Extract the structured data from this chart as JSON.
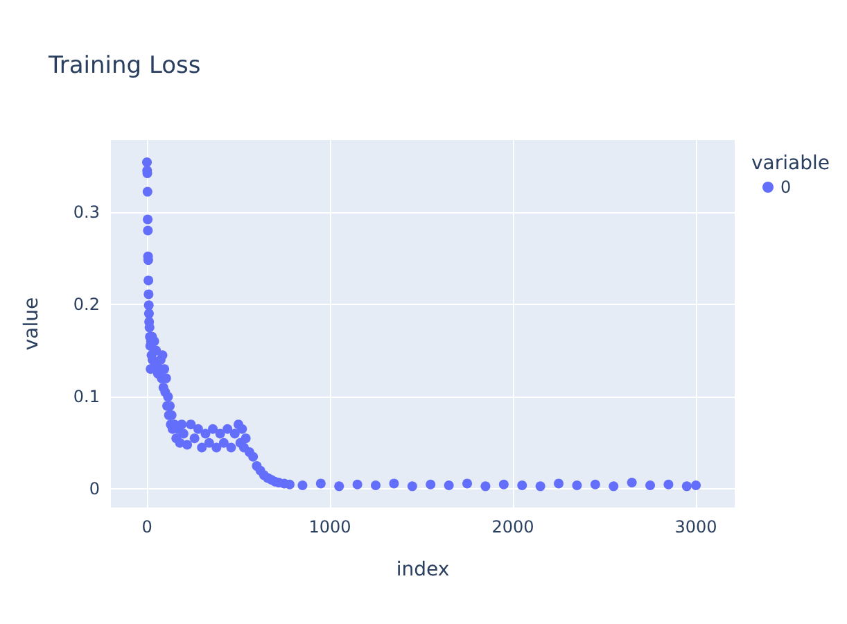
{
  "chart_data": {
    "type": "scatter",
    "title": "Training Loss",
    "xlabel": "index",
    "ylabel": "value",
    "legend_title": "variable",
    "legend": "top right",
    "grid": true,
    "marker": "circle",
    "xlim": [
      -197,
      3212
    ],
    "ylim": [
      -0.02,
      0.378
    ],
    "xticks": [
      0,
      1000,
      2000,
      3000
    ],
    "yticks": [
      0,
      0.1,
      0.2,
      0.3
    ],
    "series": [
      {
        "name": "0",
        "color": "#636efa",
        "x": [
          0,
          1,
          2,
          3,
          4,
          5,
          6,
          7,
          8,
          9,
          10,
          11,
          12,
          14,
          16,
          18,
          20,
          22,
          25,
          28,
          30,
          40,
          45,
          50,
          60,
          70,
          75,
          80,
          85,
          90,
          95,
          100,
          105,
          110,
          115,
          120,
          125,
          130,
          135,
          140,
          150,
          160,
          170,
          180,
          190,
          200,
          220,
          240,
          260,
          280,
          300,
          320,
          340,
          360,
          380,
          400,
          420,
          440,
          460,
          480,
          500,
          510,
          520,
          530,
          540,
          560,
          580,
          600,
          620,
          640,
          660,
          680,
          700,
          720,
          750,
          780,
          850,
          950,
          1050,
          1150,
          1250,
          1350,
          1450,
          1550,
          1650,
          1750,
          1850,
          1950,
          2050,
          2150,
          2250,
          2350,
          2450,
          2550,
          2650,
          2750,
          2850,
          2950,
          3000
        ],
        "values": [
          0.354,
          0.345,
          0.342,
          0.322,
          0.292,
          0.28,
          0.252,
          0.248,
          0.226,
          0.211,
          0.199,
          0.19,
          0.181,
          0.175,
          0.165,
          0.155,
          0.13,
          0.16,
          0.145,
          0.165,
          0.14,
          0.16,
          0.135,
          0.15,
          0.125,
          0.13,
          0.14,
          0.12,
          0.145,
          0.11,
          0.13,
          0.105,
          0.12,
          0.09,
          0.1,
          0.08,
          0.09,
          0.07,
          0.08,
          0.065,
          0.07,
          0.055,
          0.065,
          0.05,
          0.07,
          0.06,
          0.048,
          0.07,
          0.055,
          0.065,
          0.045,
          0.06,
          0.05,
          0.065,
          0.045,
          0.06,
          0.05,
          0.065,
          0.045,
          0.06,
          0.07,
          0.05,
          0.065,
          0.045,
          0.055,
          0.04,
          0.035,
          0.025,
          0.02,
          0.015,
          0.012,
          0.01,
          0.008,
          0.007,
          0.006,
          0.005,
          0.004,
          0.006,
          0.003,
          0.005,
          0.004,
          0.006,
          0.003,
          0.005,
          0.004,
          0.006,
          0.003,
          0.005,
          0.004,
          0.003,
          0.006,
          0.004,
          0.005,
          0.003,
          0.007,
          0.004,
          0.005,
          0.003,
          0.004
        ]
      }
    ]
  }
}
